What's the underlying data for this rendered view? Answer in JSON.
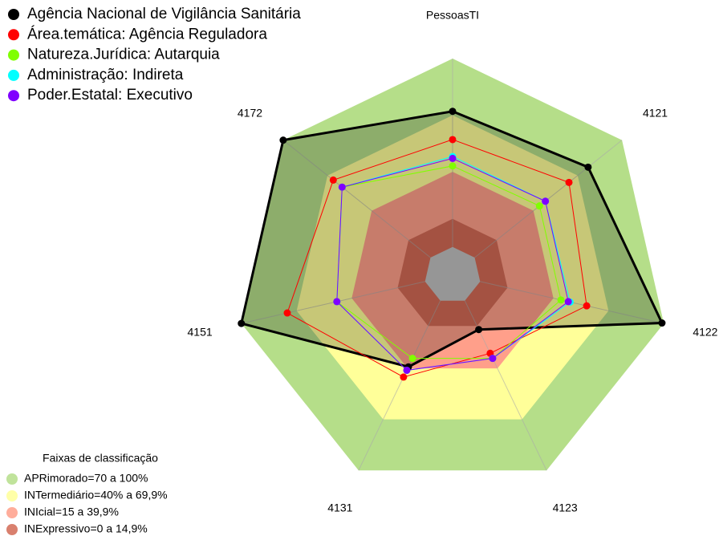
{
  "chart_data": {
    "type": "radar",
    "categories": [
      "PessoasTI",
      "4121",
      "4122",
      "4123",
      "4131",
      "4151",
      "4172"
    ],
    "rlim": [
      -15,
      100
    ],
    "series": [
      {
        "name": "Agência Nacional de Vigilância Sanitária",
        "color": "#000000",
        "values": [
          72,
          77,
          99,
          17,
          39,
          100,
          100
        ]
      },
      {
        "name": "Área.temática: Agência Reguladora",
        "color": "#ff0000",
        "values": [
          57,
          64,
          58,
          31,
          45,
          75,
          66
        ]
      },
      {
        "name": "Natureza.Jurídica: Autarquia",
        "color": "#80ff00",
        "values": [
          43,
          44,
          44,
          34,
          34,
          48,
          60
        ]
      },
      {
        "name": "Administração: Indireta",
        "color": "#00ffff",
        "values": [
          48,
          48,
          49,
          34,
          41,
          48,
          60
        ]
      },
      {
        "name": "Poder.Estatal: Executivo",
        "color": "#8000ff",
        "values": [
          47,
          48,
          48,
          34,
          41,
          48,
          60
        ]
      }
    ],
    "bands_title": "Faixas de classificação",
    "bands": [
      {
        "label": "APRimorado=70 a 100%",
        "from": 70,
        "to": 100,
        "color": "#b5de89"
      },
      {
        "label": "INTermediário=40% a 69,9%",
        "from": 40,
        "to": 69.9,
        "color": "#ffff99"
      },
      {
        "label": "INIcial=15 a 39,9%",
        "from": 15,
        "to": 39.9,
        "color": "#ff9f8a"
      },
      {
        "label": "INExpressivo=0 a 14,9%",
        "from": 0,
        "to": 14.9,
        "color": "#d26a55"
      }
    ]
  }
}
